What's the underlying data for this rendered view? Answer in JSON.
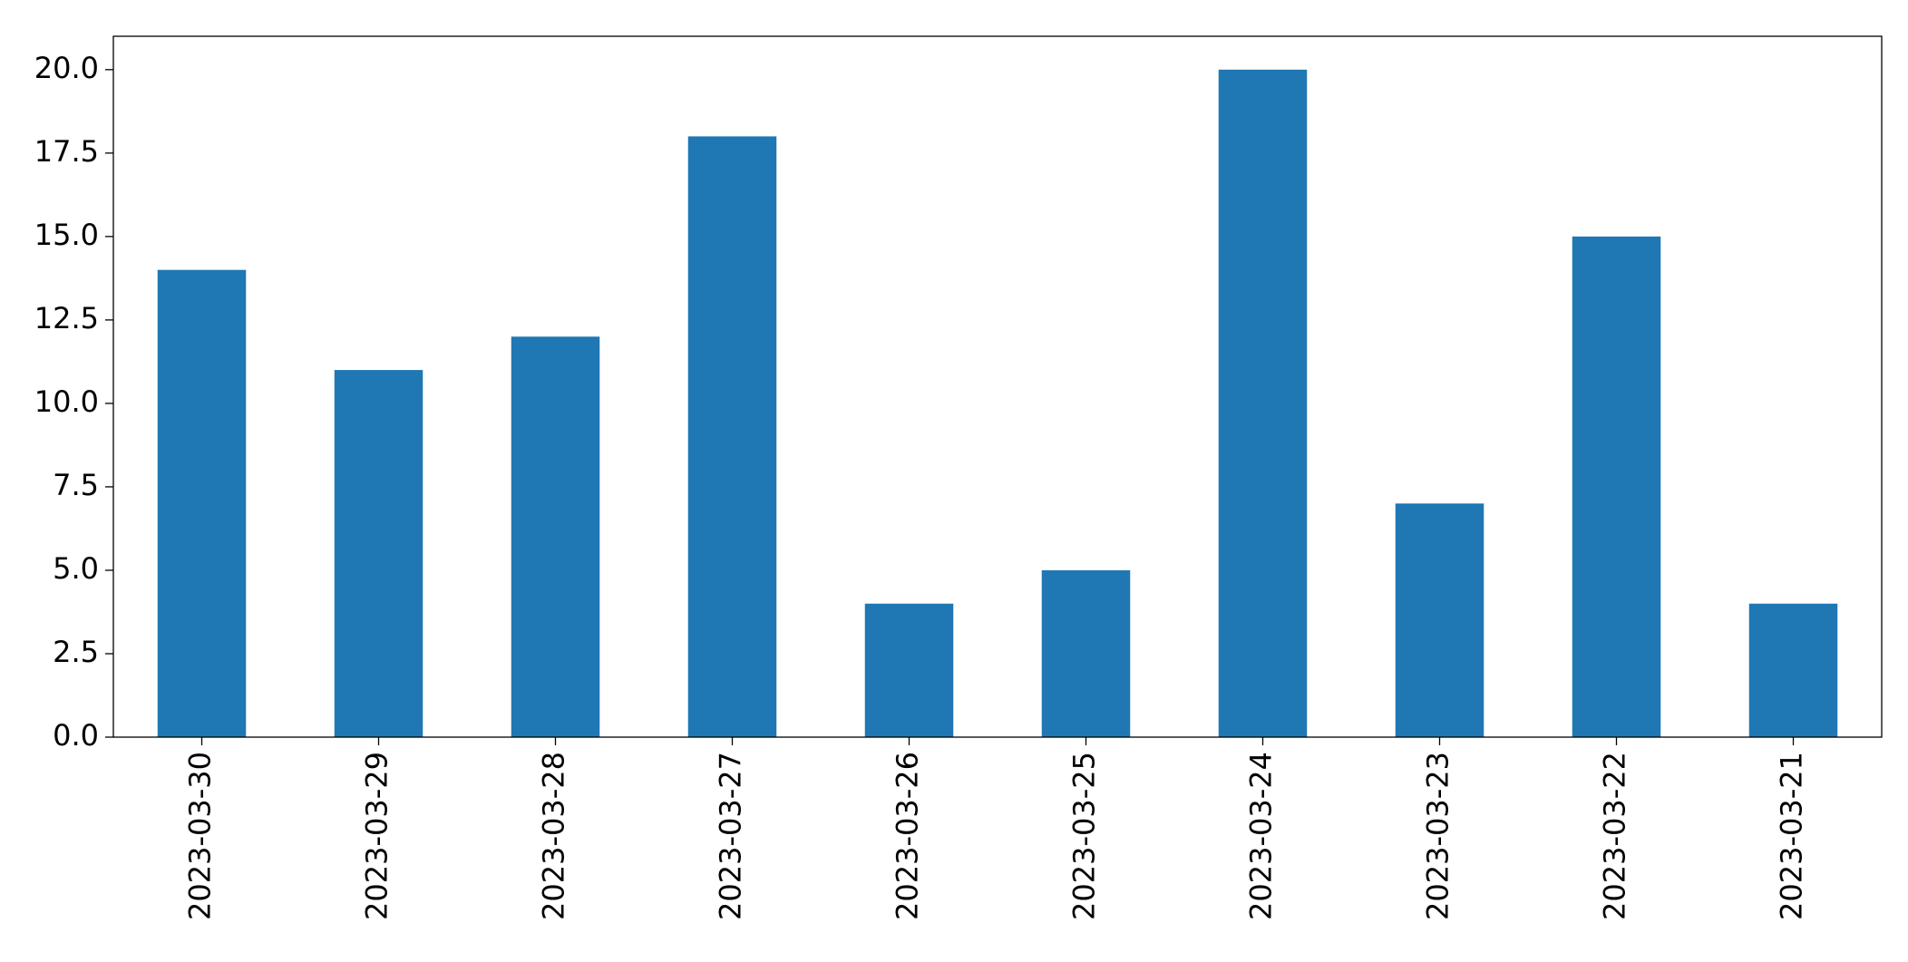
{
  "chart_data": {
    "type": "bar",
    "categories": [
      "2023-03-30",
      "2023-03-29",
      "2023-03-28",
      "2023-03-27",
      "2023-03-26",
      "2023-03-25",
      "2023-03-24",
      "2023-03-23",
      "2023-03-22",
      "2023-03-21"
    ],
    "values": [
      14,
      11,
      12,
      18,
      4,
      5,
      20,
      7,
      15,
      4
    ],
    "color": "#1f77b4",
    "ylim": [
      0,
      21
    ],
    "yticks": [
      {
        "value": 0,
        "label": "0.0"
      },
      {
        "value": 2.5,
        "label": "2.5"
      },
      {
        "value": 5,
        "label": "5.0"
      },
      {
        "value": 7.5,
        "label": "7.5"
      },
      {
        "value": 10,
        "label": "10.0"
      },
      {
        "value": 12.5,
        "label": "12.5"
      },
      {
        "value": 15,
        "label": "15.0"
      },
      {
        "value": 17.5,
        "label": "17.5"
      },
      {
        "value": 20,
        "label": "20.0"
      }
    ],
    "grid": false
  }
}
